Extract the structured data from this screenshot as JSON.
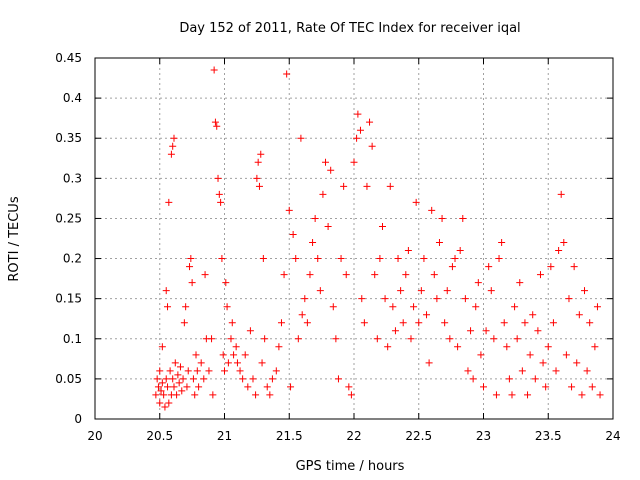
{
  "chart_data": {
    "type": "scatter",
    "title": "Day 152 of 2011, Rate Of TEC Index for receiver iqal",
    "xlabel": "GPS time / hours",
    "ylabel": "ROTI / TECUs",
    "xlim": [
      20,
      24
    ],
    "ylim": [
      0,
      0.45
    ],
    "x_ticks": [
      "20",
      "20.5",
      "21",
      "21.5",
      "22",
      "22.5",
      "23",
      "23.5",
      "24"
    ],
    "y_ticks": [
      "0",
      "0.05",
      "0.1",
      "0.15",
      "0.2",
      "0.25",
      "0.3",
      "0.35",
      "0.4",
      "0.45"
    ],
    "grid": true,
    "marker": "+",
    "color": "#ff0000",
    "series": [
      {
        "name": "ROTI",
        "points": [
          [
            20.47,
            0.03
          ],
          [
            20.48,
            0.05
          ],
          [
            20.49,
            0.04
          ],
          [
            20.5,
            0.02
          ],
          [
            20.5,
            0.06
          ],
          [
            20.51,
            0.035
          ],
          [
            20.52,
            0.045
          ],
          [
            20.52,
            0.09
          ],
          [
            20.53,
            0.03
          ],
          [
            20.54,
            0.015
          ],
          [
            20.55,
            0.05
          ],
          [
            20.55,
            0.16
          ],
          [
            20.56,
            0.04
          ],
          [
            20.56,
            0.14
          ],
          [
            20.57,
            0.02
          ],
          [
            20.57,
            0.27
          ],
          [
            20.58,
            0.06
          ],
          [
            20.59,
            0.03
          ],
          [
            20.59,
            0.33
          ],
          [
            20.6,
            0.05
          ],
          [
            20.6,
            0.34
          ],
          [
            20.61,
            0.35
          ],
          [
            20.61,
            0.04
          ],
          [
            20.62,
            0.07
          ],
          [
            20.63,
            0.03
          ],
          [
            20.64,
            0.055
          ],
          [
            20.65,
            0.045
          ],
          [
            20.66,
            0.065
          ],
          [
            20.67,
            0.035
          ],
          [
            20.68,
            0.05
          ],
          [
            20.69,
            0.12
          ],
          [
            20.7,
            0.14
          ],
          [
            20.71,
            0.04
          ],
          [
            20.72,
            0.06
          ],
          [
            20.73,
            0.19
          ],
          [
            20.74,
            0.2
          ],
          [
            20.75,
            0.17
          ],
          [
            20.76,
            0.05
          ],
          [
            20.77,
            0.03
          ],
          [
            20.78,
            0.08
          ],
          [
            20.79,
            0.06
          ],
          [
            20.8,
            0.04
          ],
          [
            20.82,
            0.07
          ],
          [
            20.84,
            0.05
          ],
          [
            20.85,
            0.18
          ],
          [
            20.86,
            0.1
          ],
          [
            20.88,
            0.06
          ],
          [
            20.9,
            0.1
          ],
          [
            20.91,
            0.03
          ],
          [
            20.92,
            0.435
          ],
          [
            20.93,
            0.37
          ],
          [
            20.94,
            0.365
          ],
          [
            20.95,
            0.3
          ],
          [
            20.96,
            0.28
          ],
          [
            20.97,
            0.27
          ],
          [
            20.98,
            0.2
          ],
          [
            20.99,
            0.08
          ],
          [
            21.0,
            0.06
          ],
          [
            21.01,
            0.17
          ],
          [
            21.02,
            0.14
          ],
          [
            21.03,
            0.07
          ],
          [
            21.05,
            0.1
          ],
          [
            21.06,
            0.12
          ],
          [
            21.07,
            0.08
          ],
          [
            21.09,
            0.09
          ],
          [
            21.1,
            0.07
          ],
          [
            21.12,
            0.06
          ],
          [
            21.14,
            0.05
          ],
          [
            21.16,
            0.08
          ],
          [
            21.18,
            0.04
          ],
          [
            21.2,
            0.11
          ],
          [
            21.22,
            0.05
          ],
          [
            21.24,
            0.03
          ],
          [
            21.25,
            0.3
          ],
          [
            21.26,
            0.32
          ],
          [
            21.27,
            0.29
          ],
          [
            21.28,
            0.33
          ],
          [
            21.29,
            0.07
          ],
          [
            21.3,
            0.2
          ],
          [
            21.31,
            0.1
          ],
          [
            21.33,
            0.04
          ],
          [
            21.35,
            0.03
          ],
          [
            21.37,
            0.05
          ],
          [
            21.4,
            0.06
          ],
          [
            21.42,
            0.09
          ],
          [
            21.44,
            0.12
          ],
          [
            21.46,
            0.18
          ],
          [
            21.48,
            0.43
          ],
          [
            21.5,
            0.26
          ],
          [
            21.51,
            0.04
          ],
          [
            21.53,
            0.23
          ],
          [
            21.55,
            0.2
          ],
          [
            21.57,
            0.1
          ],
          [
            21.59,
            0.35
          ],
          [
            21.6,
            0.13
          ],
          [
            21.62,
            0.15
          ],
          [
            21.64,
            0.12
          ],
          [
            21.66,
            0.18
          ],
          [
            21.68,
            0.22
          ],
          [
            21.7,
            0.25
          ],
          [
            21.72,
            0.2
          ],
          [
            21.74,
            0.16
          ],
          [
            21.76,
            0.28
          ],
          [
            21.78,
            0.32
          ],
          [
            21.8,
            0.24
          ],
          [
            21.82,
            0.31
          ],
          [
            21.84,
            0.14
          ],
          [
            21.86,
            0.1
          ],
          [
            21.88,
            0.05
          ],
          [
            21.9,
            0.2
          ],
          [
            21.92,
            0.29
          ],
          [
            21.94,
            0.18
          ],
          [
            21.96,
            0.04
          ],
          [
            21.98,
            0.03
          ],
          [
            22.0,
            0.32
          ],
          [
            22.02,
            0.35
          ],
          [
            22.03,
            0.38
          ],
          [
            22.05,
            0.36
          ],
          [
            22.06,
            0.15
          ],
          [
            22.08,
            0.12
          ],
          [
            22.1,
            0.29
          ],
          [
            22.12,
            0.37
          ],
          [
            22.14,
            0.34
          ],
          [
            22.16,
            0.18
          ],
          [
            22.18,
            0.1
          ],
          [
            22.2,
            0.2
          ],
          [
            22.22,
            0.24
          ],
          [
            22.24,
            0.15
          ],
          [
            22.26,
            0.09
          ],
          [
            22.28,
            0.29
          ],
          [
            22.3,
            0.14
          ],
          [
            22.32,
            0.11
          ],
          [
            22.34,
            0.2
          ],
          [
            22.36,
            0.16
          ],
          [
            22.38,
            0.12
          ],
          [
            22.4,
            0.18
          ],
          [
            22.42,
            0.21
          ],
          [
            22.44,
            0.1
          ],
          [
            22.46,
            0.14
          ],
          [
            22.48,
            0.27
          ],
          [
            22.5,
            0.12
          ],
          [
            22.52,
            0.16
          ],
          [
            22.54,
            0.2
          ],
          [
            22.56,
            0.13
          ],
          [
            22.58,
            0.07
          ],
          [
            22.6,
            0.26
          ],
          [
            22.62,
            0.18
          ],
          [
            22.64,
            0.15
          ],
          [
            22.66,
            0.22
          ],
          [
            22.68,
            0.25
          ],
          [
            22.7,
            0.12
          ],
          [
            22.72,
            0.16
          ],
          [
            22.74,
            0.1
          ],
          [
            22.76,
            0.19
          ],
          [
            22.78,
            0.2
          ],
          [
            22.8,
            0.09
          ],
          [
            22.82,
            0.21
          ],
          [
            22.84,
            0.25
          ],
          [
            22.86,
            0.15
          ],
          [
            22.88,
            0.06
          ],
          [
            22.9,
            0.11
          ],
          [
            22.92,
            0.05
          ],
          [
            22.94,
            0.14
          ],
          [
            22.96,
            0.17
          ],
          [
            22.98,
            0.08
          ],
          [
            23.0,
            0.04
          ],
          [
            23.02,
            0.11
          ],
          [
            23.04,
            0.19
          ],
          [
            23.06,
            0.16
          ],
          [
            23.08,
            0.1
          ],
          [
            23.1,
            0.03
          ],
          [
            23.12,
            0.2
          ],
          [
            23.14,
            0.22
          ],
          [
            23.16,
            0.12
          ],
          [
            23.18,
            0.09
          ],
          [
            23.2,
            0.05
          ],
          [
            23.22,
            0.03
          ],
          [
            23.24,
            0.14
          ],
          [
            23.26,
            0.1
          ],
          [
            23.28,
            0.17
          ],
          [
            23.3,
            0.06
          ],
          [
            23.32,
            0.12
          ],
          [
            23.34,
            0.03
          ],
          [
            23.36,
            0.08
          ],
          [
            23.38,
            0.13
          ],
          [
            23.4,
            0.05
          ],
          [
            23.42,
            0.11
          ],
          [
            23.44,
            0.18
          ],
          [
            23.46,
            0.07
          ],
          [
            23.48,
            0.04
          ],
          [
            23.5,
            0.09
          ],
          [
            23.52,
            0.19
          ],
          [
            23.54,
            0.12
          ],
          [
            23.56,
            0.06
          ],
          [
            23.58,
            0.21
          ],
          [
            23.6,
            0.28
          ],
          [
            23.62,
            0.22
          ],
          [
            23.64,
            0.08
          ],
          [
            23.66,
            0.15
          ],
          [
            23.68,
            0.04
          ],
          [
            23.7,
            0.19
          ],
          [
            23.72,
            0.07
          ],
          [
            23.74,
            0.13
          ],
          [
            23.76,
            0.03
          ],
          [
            23.78,
            0.16
          ],
          [
            23.8,
            0.06
          ],
          [
            23.82,
            0.12
          ],
          [
            23.84,
            0.04
          ],
          [
            23.86,
            0.09
          ],
          [
            23.88,
            0.14
          ],
          [
            23.9,
            0.03
          ]
        ]
      }
    ]
  }
}
